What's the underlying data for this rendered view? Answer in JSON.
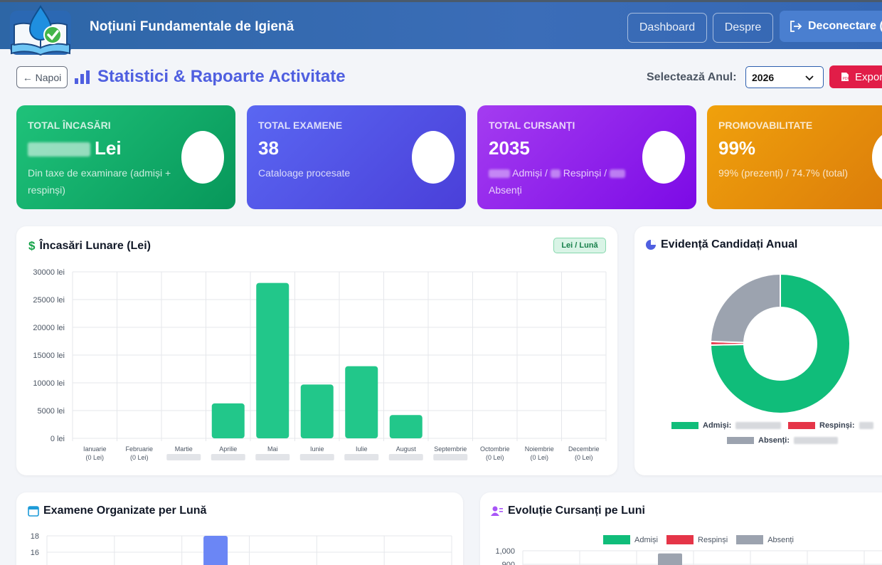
{
  "header": {
    "title": "Noțiuni Fundamentale de Igienă",
    "nav": [
      "Dashboard",
      "Despre"
    ],
    "logout_label": "Deconectare ("
  },
  "toolbar": {
    "back_label": "← Napoi",
    "page_title": "Statistici & Rapoarte Activitate",
    "year_label": "Selectează Anul:",
    "year_value": "2026",
    "export_label": "Expor"
  },
  "cards": [
    {
      "label": "TOTAL ÎNCASĂRI",
      "value": "Lei",
      "sub": "Din taxe de examinare (admiși + respinși)",
      "gradient": [
        "#1fc27a",
        "#07975a"
      ]
    },
    {
      "label": "TOTAL EXAMENE",
      "value": "38",
      "sub": "Cataloage procesate",
      "gradient": [
        "#5a67f2",
        "#4a3fd9"
      ]
    },
    {
      "label": "TOTAL CURSANȚI",
      "value": "2035",
      "sub_parts": [
        "Admiși /",
        "Respinși /",
        "Absenți"
      ],
      "gradient": [
        "#a43cf0",
        "#7c0ae6"
      ]
    },
    {
      "label": "PROMOVABILITATE",
      "value": "99%",
      "sub": "99% (prezenți) / 74.7% (total)",
      "gradient": [
        "#f0a10c",
        "#d9780a"
      ]
    }
  ],
  "monthly_income": {
    "title": "Încasări Lunare (Lei)",
    "badge": "Lei / Lună",
    "title_icon": "dollar-icon",
    "color": "#22c78a",
    "chart_data": {
      "type": "bar",
      "categories": [
        "Ianuarie",
        "Februarie",
        "Martie",
        "Aprilie",
        "Mai",
        "Iunie",
        "Iulie",
        "August",
        "Septembrie",
        "Octombrie",
        "Noiembrie",
        "Decembrie"
      ],
      "category_sublabels": [
        "(0 Lei)",
        "(0 Lei)",
        "",
        "",
        "",
        "",
        "",
        "",
        "",
        "(0 Lei)",
        "(0 Lei)",
        "(0 Lei)"
      ],
      "values": [
        0,
        0,
        0,
        6300,
        28000,
        9700,
        13000,
        4200,
        0,
        0,
        0,
        0
      ],
      "yticks": [
        "0 lei",
        "5000 lei",
        "10000 lei",
        "15000 lei",
        "20000 lei",
        "25000 lei",
        "30000 lei"
      ],
      "ylim": [
        0,
        30000
      ],
      "grid": true
    }
  },
  "candidates": {
    "title": "Evidență Candidați Anual",
    "title_icon": "pie-chart-icon",
    "chart_data": {
      "type": "pie",
      "series": [
        {
          "name": "Admiși",
          "value": 74.7,
          "color": "#10bd7a"
        },
        {
          "name": "Respinși",
          "value": 0.8,
          "color": "#e53548"
        },
        {
          "name": "Absenți",
          "value": 24.5,
          "color": "#9ca3af"
        }
      ],
      "legend_labels": [
        "Admiși:",
        "Respinși:",
        "Absenți:"
      ]
    }
  },
  "exams": {
    "title": "Examene Organizate per Lună",
    "title_icon": "calendar-icon",
    "color": "#6b86f5",
    "chart_data": {
      "type": "bar",
      "yticks": [
        "16",
        "18"
      ],
      "values": [
        0,
        0,
        18,
        0,
        0,
        0
      ]
    }
  },
  "evolution": {
    "title": "Evoluție Cursanți pe Luni",
    "title_icon": "users-icon",
    "legend": [
      {
        "name": "Admiși",
        "color": "#10bd7a"
      },
      {
        "name": "Respinși",
        "color": "#e53548"
      },
      {
        "name": "Absenți",
        "color": "#9ca3af"
      }
    ],
    "chart_data": {
      "type": "bar",
      "yticks": [
        "900",
        "1,000"
      ],
      "values": [
        0,
        0,
        0,
        980,
        0,
        0,
        0,
        0
      ]
    }
  }
}
